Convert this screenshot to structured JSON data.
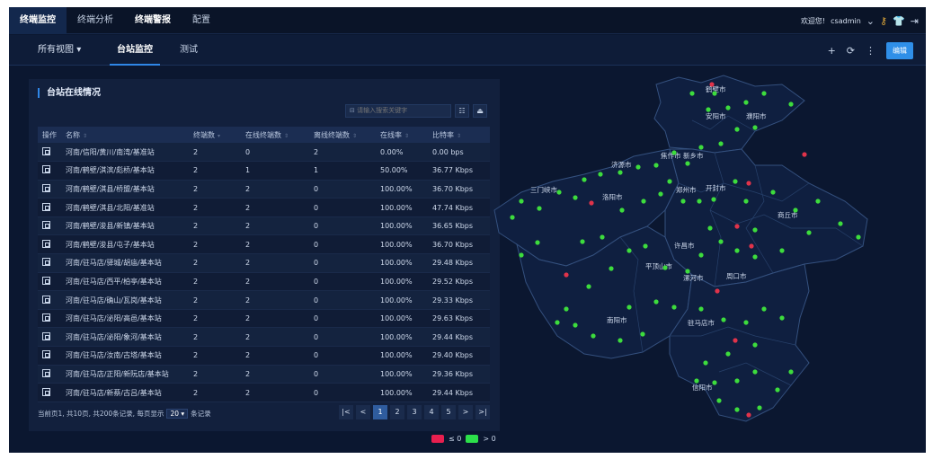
{
  "nav": {
    "items": [
      {
        "label": "终端监控",
        "active": true
      },
      {
        "label": "终端分析",
        "active": false
      },
      {
        "label": "终端警报",
        "active": false,
        "bold": true
      },
      {
        "label": "配置",
        "active": false
      }
    ],
    "welcome": "欢迎您!",
    "username": "csadmin"
  },
  "subnav": {
    "all_views": "所有视图",
    "tabs": [
      {
        "label": "台站监控",
        "active": true
      },
      {
        "label": "测试",
        "active": false
      }
    ],
    "edit_label": "编辑"
  },
  "panel": {
    "title": "台站在线情况",
    "search_placeholder": "请输入搜索关键字"
  },
  "table": {
    "columns": [
      "操作",
      "名称",
      "终端数",
      "在线终端数",
      "离线终端数",
      "在线率",
      "比特率"
    ],
    "rows": [
      [
        "河南/信阳/黄川/南湾/基准站",
        "2",
        "0",
        "2",
        "0.00%",
        "0.00 bps"
      ],
      [
        "河南/鹤壁/淇滨/彪桥/基本站",
        "2",
        "1",
        "1",
        "50.00%",
        "36.77 Kbps"
      ],
      [
        "河南/鹤壁/淇县/桥盟/基本站",
        "2",
        "2",
        "0",
        "100.00%",
        "36.70 Kbps"
      ],
      [
        "河南/鹤壁/淇县/北阳/基准站",
        "2",
        "2",
        "0",
        "100.00%",
        "47.74 Kbps"
      ],
      [
        "河南/鹤壁/浚县/新镇/基本站",
        "2",
        "2",
        "0",
        "100.00%",
        "36.65 Kbps"
      ],
      [
        "河南/鹤壁/浚县/屯子/基本站",
        "2",
        "2",
        "0",
        "100.00%",
        "36.70 Kbps"
      ],
      [
        "河南/驻马店/驿城/胡庙/基本站",
        "2",
        "2",
        "0",
        "100.00%",
        "29.48 Kbps"
      ],
      [
        "河南/驻马店/西平/柏亭/基本站",
        "2",
        "2",
        "0",
        "100.00%",
        "29.52 Kbps"
      ],
      [
        "河南/驻马店/确山/瓦岗/基本站",
        "2",
        "2",
        "0",
        "100.00%",
        "29.33 Kbps"
      ],
      [
        "河南/驻马店/泌阳/高邑/基本站",
        "2",
        "2",
        "0",
        "100.00%",
        "29.63 Kbps"
      ],
      [
        "河南/驻马店/泌阳/象河/基本站",
        "2",
        "2",
        "0",
        "100.00%",
        "29.44 Kbps"
      ],
      [
        "河南/驻马店/汝南/古塔/基本站",
        "2",
        "2",
        "0",
        "100.00%",
        "29.40 Kbps"
      ],
      [
        "河南/驻马店/正阳/新阮店/基本站",
        "2",
        "2",
        "0",
        "100.00%",
        "29.36 Kbps"
      ],
      [
        "河南/驻马店/新蔡/古吕/基本站",
        "2",
        "2",
        "0",
        "100.00%",
        "29.44 Kbps"
      ]
    ]
  },
  "pagination": {
    "info": "当前页1, 共10页, 共200条记录, 每页显示",
    "page_size": "20",
    "unit": "条记录",
    "pages": [
      "1",
      "2",
      "3",
      "4",
      "5"
    ],
    "current": "1"
  },
  "map": {
    "cities": [
      "鹤壁市",
      "安阳市",
      "濮阳市",
      "焦作市",
      "新乡市",
      "济源市",
      "洛阳市",
      "三门峡市",
      "郑州市",
      "开封市",
      "商丘市",
      "许昌市",
      "平顶山市",
      "漯河市",
      "周口市",
      "南阳市",
      "驻马店市",
      "信阳市"
    ],
    "online_color": "#3ddc3d",
    "offline_color": "#e0334a"
  },
  "legend": {
    "offline_label": "≤ 0",
    "online_label": "> 0",
    "offline_color": "#e81f4f",
    "online_color": "#2ce04a"
  }
}
